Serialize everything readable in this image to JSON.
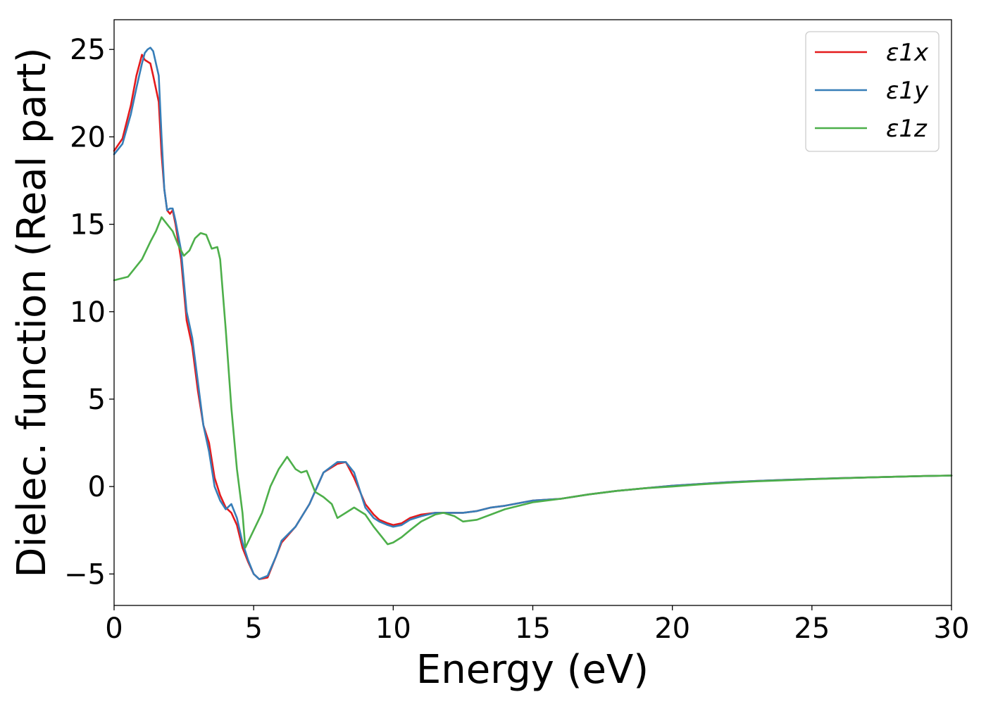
{
  "chart_data": {
    "type": "line",
    "title": "",
    "xlabel": "Energy (eV)",
    "ylabel": "Dielec. function (Real part)",
    "xlim": [
      0,
      30
    ],
    "ylim": [
      -6.8,
      26.7
    ],
    "xticks": [
      0,
      5,
      10,
      15,
      20,
      25,
      30
    ],
    "yticks": [
      -5,
      0,
      5,
      10,
      15,
      20,
      25
    ],
    "xtick_labels": [
      "0",
      "5",
      "10",
      "15",
      "20",
      "25",
      "30"
    ],
    "ytick_labels": [
      "−5",
      "0",
      "5",
      "10",
      "15",
      "20",
      "25"
    ],
    "grid": false,
    "legend_position": "top-right",
    "series": [
      {
        "name": "ε1x",
        "color": "#e41a1c",
        "x": [
          0,
          0.3,
          0.6,
          0.8,
          1.0,
          1.1,
          1.2,
          1.3,
          1.4,
          1.6,
          1.7,
          1.8,
          1.9,
          2.0,
          2.1,
          2.2,
          2.4,
          2.6,
          2.8,
          3.0,
          3.2,
          3.4,
          3.6,
          3.8,
          4.0,
          4.2,
          4.4,
          4.6,
          4.8,
          5.0,
          5.2,
          5.5,
          5.8,
          6.0,
          6.5,
          7.0,
          7.5,
          8.0,
          8.3,
          8.6,
          9.0,
          9.3,
          9.5,
          9.8,
          10.0,
          10.3,
          10.6,
          11.0,
          11.5,
          12.0,
          12.5,
          13.0,
          13.5,
          14.0,
          15.0,
          16.0,
          17.0,
          18.0,
          19.0,
          20.0,
          21.0,
          22.0,
          23.0,
          24.0,
          25.0,
          26.0,
          27.0,
          28.0,
          29.0,
          30.0
        ],
        "values": [
          19.2,
          19.9,
          21.8,
          23.5,
          24.7,
          24.4,
          24.3,
          24.2,
          23.5,
          22.0,
          19.0,
          17.0,
          15.8,
          15.6,
          15.8,
          15.0,
          13.0,
          9.5,
          8.0,
          5.5,
          3.5,
          2.5,
          0.5,
          -0.5,
          -1.2,
          -1.5,
          -2.2,
          -3.5,
          -4.3,
          -5.0,
          -5.3,
          -5.2,
          -4.0,
          -3.2,
          -2.3,
          -1.0,
          0.8,
          1.3,
          1.4,
          0.5,
          -1.0,
          -1.6,
          -1.9,
          -2.1,
          -2.2,
          -2.1,
          -1.8,
          -1.6,
          -1.5,
          -1.5,
          -1.5,
          -1.4,
          -1.2,
          -1.1,
          -0.8,
          -0.7,
          -0.45,
          -0.25,
          -0.1,
          0.05,
          0.15,
          0.25,
          0.32,
          0.38,
          0.43,
          0.48,
          0.52,
          0.56,
          0.6,
          0.63
        ]
      },
      {
        "name": "ε1y",
        "color": "#377eb8",
        "x": [
          0,
          0.3,
          0.6,
          0.8,
          1.0,
          1.1,
          1.2,
          1.3,
          1.4,
          1.6,
          1.7,
          1.8,
          1.9,
          2.0,
          2.1,
          2.2,
          2.4,
          2.6,
          2.8,
          3.0,
          3.2,
          3.4,
          3.6,
          3.8,
          4.0,
          4.2,
          4.4,
          4.6,
          4.8,
          5.0,
          5.2,
          5.5,
          5.8,
          6.0,
          6.5,
          7.0,
          7.5,
          8.0,
          8.3,
          8.6,
          9.0,
          9.3,
          9.5,
          9.8,
          10.0,
          10.3,
          10.6,
          11.0,
          11.5,
          12.0,
          12.5,
          13.0,
          13.5,
          14.0,
          15.0,
          16.0,
          17.0,
          18.0,
          19.0,
          20.0,
          21.0,
          22.0,
          23.0,
          24.0,
          25.0,
          26.0,
          27.0,
          28.0,
          29.0,
          30.0
        ],
        "values": [
          19.0,
          19.6,
          21.3,
          22.8,
          24.2,
          24.8,
          25.0,
          25.1,
          24.9,
          23.5,
          20.0,
          17.0,
          15.8,
          15.9,
          15.9,
          15.2,
          13.5,
          10.0,
          8.5,
          6.0,
          3.5,
          2.0,
          0.0,
          -0.8,
          -1.3,
          -1.0,
          -1.8,
          -3.2,
          -4.2,
          -5.0,
          -5.3,
          -5.1,
          -4.0,
          -3.1,
          -2.3,
          -1.0,
          0.8,
          1.4,
          1.4,
          0.8,
          -1.2,
          -1.8,
          -2.0,
          -2.2,
          -2.3,
          -2.2,
          -1.9,
          -1.7,
          -1.5,
          -1.5,
          -1.5,
          -1.4,
          -1.2,
          -1.1,
          -0.8,
          -0.7,
          -0.45,
          -0.25,
          -0.1,
          0.05,
          0.15,
          0.25,
          0.32,
          0.38,
          0.43,
          0.48,
          0.52,
          0.56,
          0.6,
          0.63
        ]
      },
      {
        "name": "ε1z",
        "color": "#4daf4a",
        "x": [
          0,
          0.5,
          1.0,
          1.3,
          1.5,
          1.7,
          1.9,
          2.1,
          2.3,
          2.5,
          2.7,
          2.9,
          3.1,
          3.3,
          3.5,
          3.7,
          3.8,
          4.0,
          4.2,
          4.4,
          4.6,
          4.7,
          5.0,
          5.3,
          5.6,
          5.9,
          6.2,
          6.5,
          6.7,
          6.9,
          7.2,
          7.5,
          7.8,
          8.0,
          8.3,
          8.6,
          9.0,
          9.3,
          9.6,
          9.8,
          10.0,
          10.3,
          10.6,
          11.0,
          11.5,
          11.8,
          12.2,
          12.5,
          13.0,
          13.5,
          14.0,
          15.0,
          16.0,
          17.0,
          18.0,
          19.0,
          20.0,
          21.0,
          22.0,
          23.0,
          24.0,
          25.0,
          26.0,
          27.0,
          28.0,
          29.0,
          30.0
        ],
        "values": [
          11.8,
          12.0,
          13.0,
          14.0,
          14.6,
          15.4,
          15.0,
          14.6,
          13.8,
          13.2,
          13.5,
          14.2,
          14.5,
          14.4,
          13.6,
          13.7,
          13.0,
          9.0,
          4.5,
          1.0,
          -1.5,
          -3.5,
          -2.5,
          -1.5,
          0.0,
          1.0,
          1.7,
          1.0,
          0.8,
          0.9,
          -0.3,
          -0.6,
          -1.0,
          -1.8,
          -1.5,
          -1.2,
          -1.6,
          -2.3,
          -2.9,
          -3.3,
          -3.2,
          -2.9,
          -2.5,
          -2.0,
          -1.6,
          -1.5,
          -1.7,
          -2.0,
          -1.9,
          -1.6,
          -1.3,
          -0.9,
          -0.7,
          -0.45,
          -0.25,
          -0.1,
          0.0,
          0.12,
          0.22,
          0.3,
          0.36,
          0.42,
          0.47,
          0.52,
          0.56,
          0.6,
          0.63
        ]
      }
    ]
  }
}
